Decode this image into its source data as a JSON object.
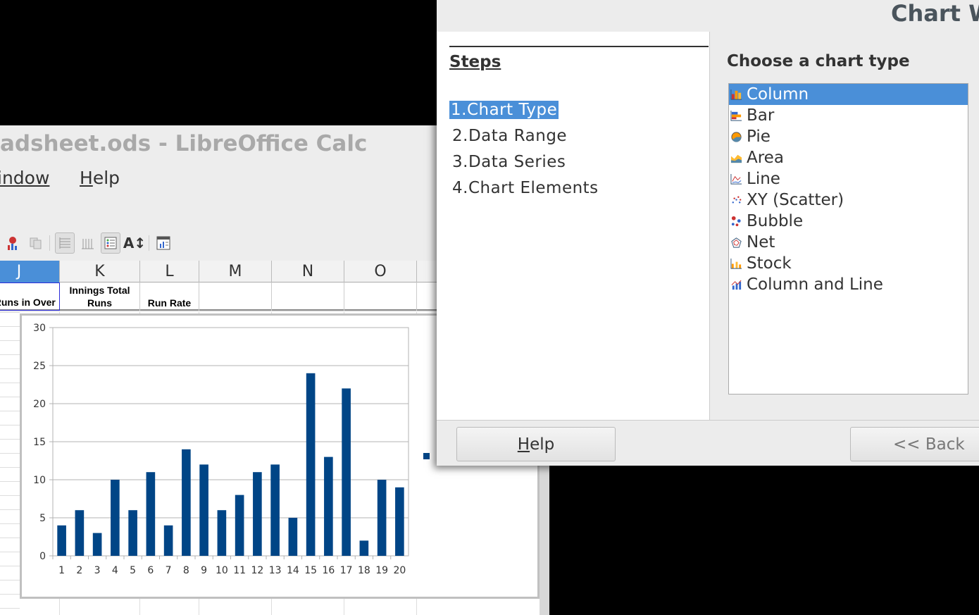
{
  "calc": {
    "title": "adsheet.ods - LibreOffice Calc",
    "menu": [
      {
        "label": "Window",
        "shown": "indow"
      },
      {
        "label": "Help"
      }
    ],
    "toolbar": [
      "chart-type-icon",
      "copy-icon",
      "horizontal-grids-icon",
      "vertical-grids-icon",
      "legend-icon",
      "scale-text-icon",
      "data-table-icon"
    ],
    "columns": [
      "J",
      "K",
      "L",
      "M",
      "N",
      "O"
    ],
    "selected_column": "J",
    "header_row": [
      "al Runs in Over",
      "Innings Total Runs",
      "Run Rate",
      "",
      "",
      ""
    ]
  },
  "chart_data": {
    "type": "bar",
    "categories": [
      "1",
      "2",
      "3",
      "4",
      "5",
      "6",
      "7",
      "8",
      "9",
      "10",
      "11",
      "12",
      "13",
      "14",
      "15",
      "16",
      "17",
      "18",
      "19",
      "20"
    ],
    "values": [
      4,
      6,
      3,
      10,
      6,
      11,
      4,
      14,
      12,
      6,
      8,
      11,
      12,
      5,
      24,
      13,
      22,
      2,
      10,
      9
    ],
    "ylim": [
      0,
      30
    ],
    "yticks": [
      0,
      5,
      10,
      15,
      20,
      25,
      30
    ],
    "grid": true,
    "color": "#004586",
    "legend": "right"
  },
  "dialog": {
    "title": "Chart W",
    "steps_heading": "Steps",
    "steps": [
      "1.Chart Type",
      "2.Data Range",
      "3.Data Series",
      "4.Chart Elements"
    ],
    "current_step": 0,
    "choose_heading": "Choose a chart type",
    "chart_types": [
      {
        "label": "Column",
        "icon": "column-chart-icon"
      },
      {
        "label": "Bar",
        "icon": "bar-chart-icon"
      },
      {
        "label": "Pie",
        "icon": "pie-chart-icon"
      },
      {
        "label": "Area",
        "icon": "area-chart-icon"
      },
      {
        "label": "Line",
        "icon": "line-chart-icon"
      },
      {
        "label": "XY (Scatter)",
        "icon": "scatter-chart-icon"
      },
      {
        "label": "Bubble",
        "icon": "bubble-chart-icon"
      },
      {
        "label": "Net",
        "icon": "net-chart-icon"
      },
      {
        "label": "Stock",
        "icon": "stock-chart-icon"
      },
      {
        "label": "Column and Line",
        "icon": "column-line-chart-icon"
      }
    ],
    "selected_type": "Column",
    "help_label": "Help",
    "back_label": "<< Back",
    "accent": "#4a8fd8"
  }
}
